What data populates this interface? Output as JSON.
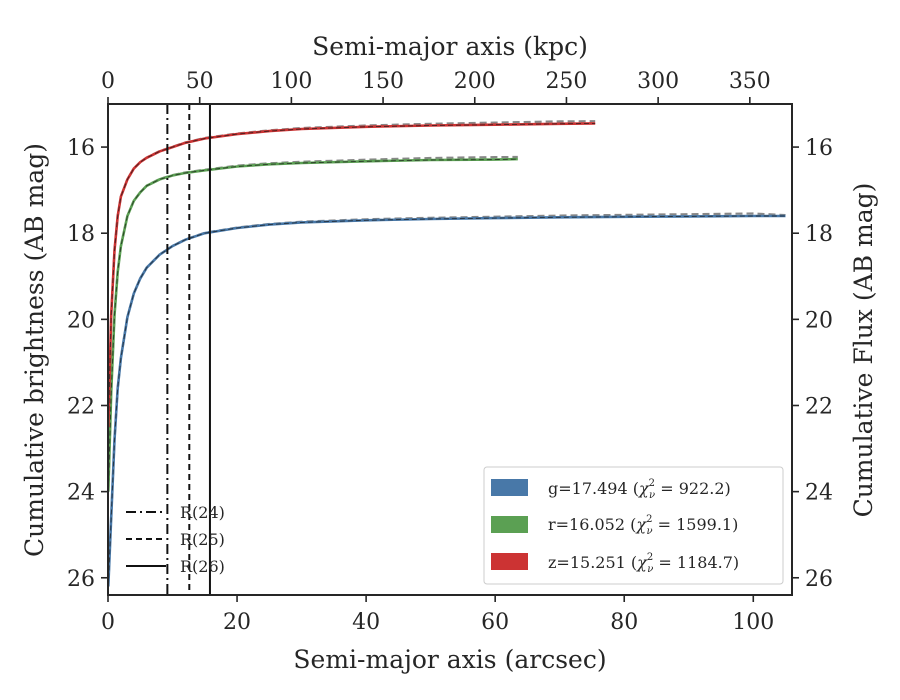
{
  "chart_data": {
    "type": "line",
    "xlabel": "Semi-major axis (arcsec)",
    "x2label": "Semi-major axis (kpc)",
    "ylabel": "Cumulative brightness (AB mag)",
    "y2label": "Cumulative Flux (AB mag)",
    "xlim": [
      0,
      106
    ],
    "x2lim": [
      0,
      373
    ],
    "ylim": [
      26.4,
      15.0
    ],
    "xticks": [
      0,
      20,
      40,
      60,
      80,
      100
    ],
    "x2ticks": [
      0,
      50,
      100,
      150,
      200,
      250,
      300,
      350
    ],
    "yticks": [
      16,
      18,
      20,
      22,
      24,
      26
    ],
    "series": [
      {
        "name": "g",
        "color": "#4878a8",
        "legend": "g=17.494 (χ²ᵥ = 922.2)",
        "legend_main": "g=17.494 (",
        "legend_sup": "2",
        "legend_sub": "ν",
        "legend_rest": " = 922.2)",
        "x": [
          0.05,
          0.5,
          1,
          1.5,
          2,
          3,
          4,
          5,
          6,
          8,
          10,
          12,
          15,
          20,
          25,
          30,
          40,
          50,
          60,
          70,
          80,
          90,
          100,
          105
        ],
        "y": [
          26.2,
          24.6,
          22.8,
          21.6,
          20.9,
          19.95,
          19.4,
          19.05,
          18.8,
          18.5,
          18.3,
          18.15,
          18.0,
          17.88,
          17.8,
          17.75,
          17.7,
          17.67,
          17.65,
          17.63,
          17.62,
          17.61,
          17.6,
          17.6
        ]
      },
      {
        "name": "r",
        "color": "#5ba053",
        "legend": "r=16.052 (χ²ᵥ = 1599.1)",
        "legend_main": "r=16.052 (",
        "legend_sup": "2",
        "legend_sub": "ν",
        "legend_rest": " = 1599.1)",
        "x": [
          0.05,
          0.5,
          1,
          1.5,
          2,
          3,
          4,
          5,
          6,
          8,
          10,
          12,
          15,
          20,
          25,
          30,
          40,
          50,
          60,
          63.5
        ],
        "y": [
          24.0,
          21.7,
          19.9,
          18.9,
          18.3,
          17.6,
          17.25,
          17.05,
          16.9,
          16.75,
          16.66,
          16.6,
          16.54,
          16.45,
          16.4,
          16.37,
          16.33,
          16.3,
          16.29,
          16.28
        ]
      },
      {
        "name": "z",
        "color": "#cc3333",
        "legend": "z=15.251 (χ²ᵥ = 1184.7)",
        "legend_main": "z=15.251 (",
        "legend_sup": "2",
        "legend_sub": "ν",
        "legend_rest": " = 1184.7)",
        "x": [
          0.05,
          0.5,
          1,
          1.5,
          2,
          3,
          4,
          5,
          6,
          8,
          10,
          12,
          15,
          20,
          25,
          30,
          40,
          50,
          60,
          70,
          75.5
        ],
        "y": [
          22.5,
          19.9,
          18.4,
          17.6,
          17.15,
          16.75,
          16.5,
          16.35,
          16.25,
          16.1,
          16.0,
          15.9,
          15.8,
          15.7,
          15.63,
          15.58,
          15.53,
          15.5,
          15.48,
          15.46,
          15.45
        ]
      }
    ],
    "model_series": [
      {
        "name": "g-model",
        "color": "#888888",
        "style": "dashed",
        "x_end": 105,
        "y_end": 17.58,
        "follows": "g"
      },
      {
        "name": "r-model",
        "color": "#888888",
        "style": "dashed",
        "x_end": 63.5,
        "y_end": 16.23,
        "follows": "r"
      },
      {
        "name": "z-model",
        "color": "#888888",
        "style": "dashed",
        "x_end": 75.5,
        "y_end": 15.4,
        "follows": "z"
      }
    ],
    "vlines": [
      {
        "label": "R(24)",
        "x": 9.2,
        "style": "dashdot"
      },
      {
        "label": "R(25)",
        "x": 12.6,
        "style": "dashed"
      },
      {
        "label": "R(26)",
        "x": 15.8,
        "style": "solid"
      }
    ],
    "legend_position": "lower right",
    "radius_legend_position": "lower left"
  }
}
